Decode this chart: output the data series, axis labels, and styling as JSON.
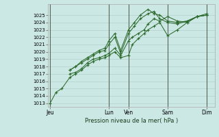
{
  "background_color": "#cce8e4",
  "grid_color": "#b0d0cc",
  "line_color": "#2d6a2d",
  "marker_color": "#2d6a2d",
  "xlabel_text": "Pression niveau de la mer( hPa )",
  "ylim": [
    1012.5,
    1026.5
  ],
  "yticks": [
    1013,
    1014,
    1015,
    1016,
    1017,
    1018,
    1019,
    1020,
    1021,
    1022,
    1023,
    1024,
    1025
  ],
  "x_day_labels": [
    "Jeu",
    "Lun",
    "Ven",
    "Sam",
    "Dim"
  ],
  "x_day_positions": [
    0.0,
    3.0,
    4.0,
    6.0,
    8.0
  ],
  "vline_color": "#556655",
  "xlim": [
    -0.1,
    8.4
  ],
  "series1_x": [
    0.0,
    0.3,
    0.6,
    1.0,
    1.3,
    1.6,
    1.9,
    2.2,
    2.5,
    2.8,
    3.0,
    3.3,
    3.6,
    4.0,
    4.2,
    4.5,
    4.8,
    5.0,
    5.3,
    5.6,
    6.0,
    6.5,
    7.0,
    7.5,
    8.0
  ],
  "series1_y": [
    1013.0,
    1014.5,
    1015.0,
    1016.5,
    1017.0,
    1017.5,
    1018.2,
    1018.7,
    1019.0,
    1019.2,
    1019.5,
    1020.0,
    1019.2,
    1019.5,
    1021.0,
    1021.8,
    1022.5,
    1023.0,
    1023.5,
    1024.0,
    1022.2,
    1023.0,
    1024.0,
    1024.8,
    1025.0
  ],
  "series2_x": [
    1.0,
    1.3,
    1.6,
    1.9,
    2.2,
    2.5,
    2.8,
    3.0,
    3.3,
    3.6,
    4.0,
    4.2,
    4.5,
    4.8,
    5.0,
    5.3,
    5.6,
    6.0,
    6.5,
    7.0,
    7.5,
    8.0
  ],
  "series2_y": [
    1017.0,
    1017.2,
    1017.7,
    1018.5,
    1019.0,
    1019.2,
    1019.5,
    1019.8,
    1020.5,
    1019.5,
    1021.5,
    1022.0,
    1022.5,
    1023.0,
    1023.8,
    1024.5,
    1024.2,
    1024.8,
    1024.2,
    1024.0,
    1024.8,
    1025.0
  ],
  "series3_x": [
    1.0,
    1.3,
    1.6,
    1.9,
    2.2,
    2.5,
    2.8,
    3.0,
    3.3,
    3.6,
    4.0,
    4.3,
    4.6,
    5.0,
    5.3,
    5.6,
    6.0,
    6.5,
    7.0,
    7.5,
    8.0
  ],
  "series3_y": [
    1017.5,
    1018.0,
    1018.5,
    1019.0,
    1019.5,
    1020.0,
    1020.2,
    1021.0,
    1022.0,
    1019.8,
    1022.5,
    1023.5,
    1024.5,
    1025.2,
    1025.5,
    1024.5,
    1024.0,
    1023.8,
    1024.2,
    1024.8,
    1025.0
  ],
  "series4_x": [
    1.0,
    1.3,
    1.6,
    1.9,
    2.2,
    2.5,
    2.8,
    3.0,
    3.3,
    3.6,
    4.0,
    4.3,
    4.6,
    5.0,
    5.3,
    5.6,
    6.0,
    6.5,
    7.0,
    7.5,
    8.0
  ],
  "series4_y": [
    1017.5,
    1018.0,
    1018.7,
    1019.2,
    1019.7,
    1020.2,
    1020.5,
    1021.5,
    1022.5,
    1020.2,
    1023.0,
    1024.0,
    1025.0,
    1025.8,
    1025.2,
    1025.0,
    1024.2,
    1024.0,
    1024.2,
    1024.8,
    1025.2
  ]
}
